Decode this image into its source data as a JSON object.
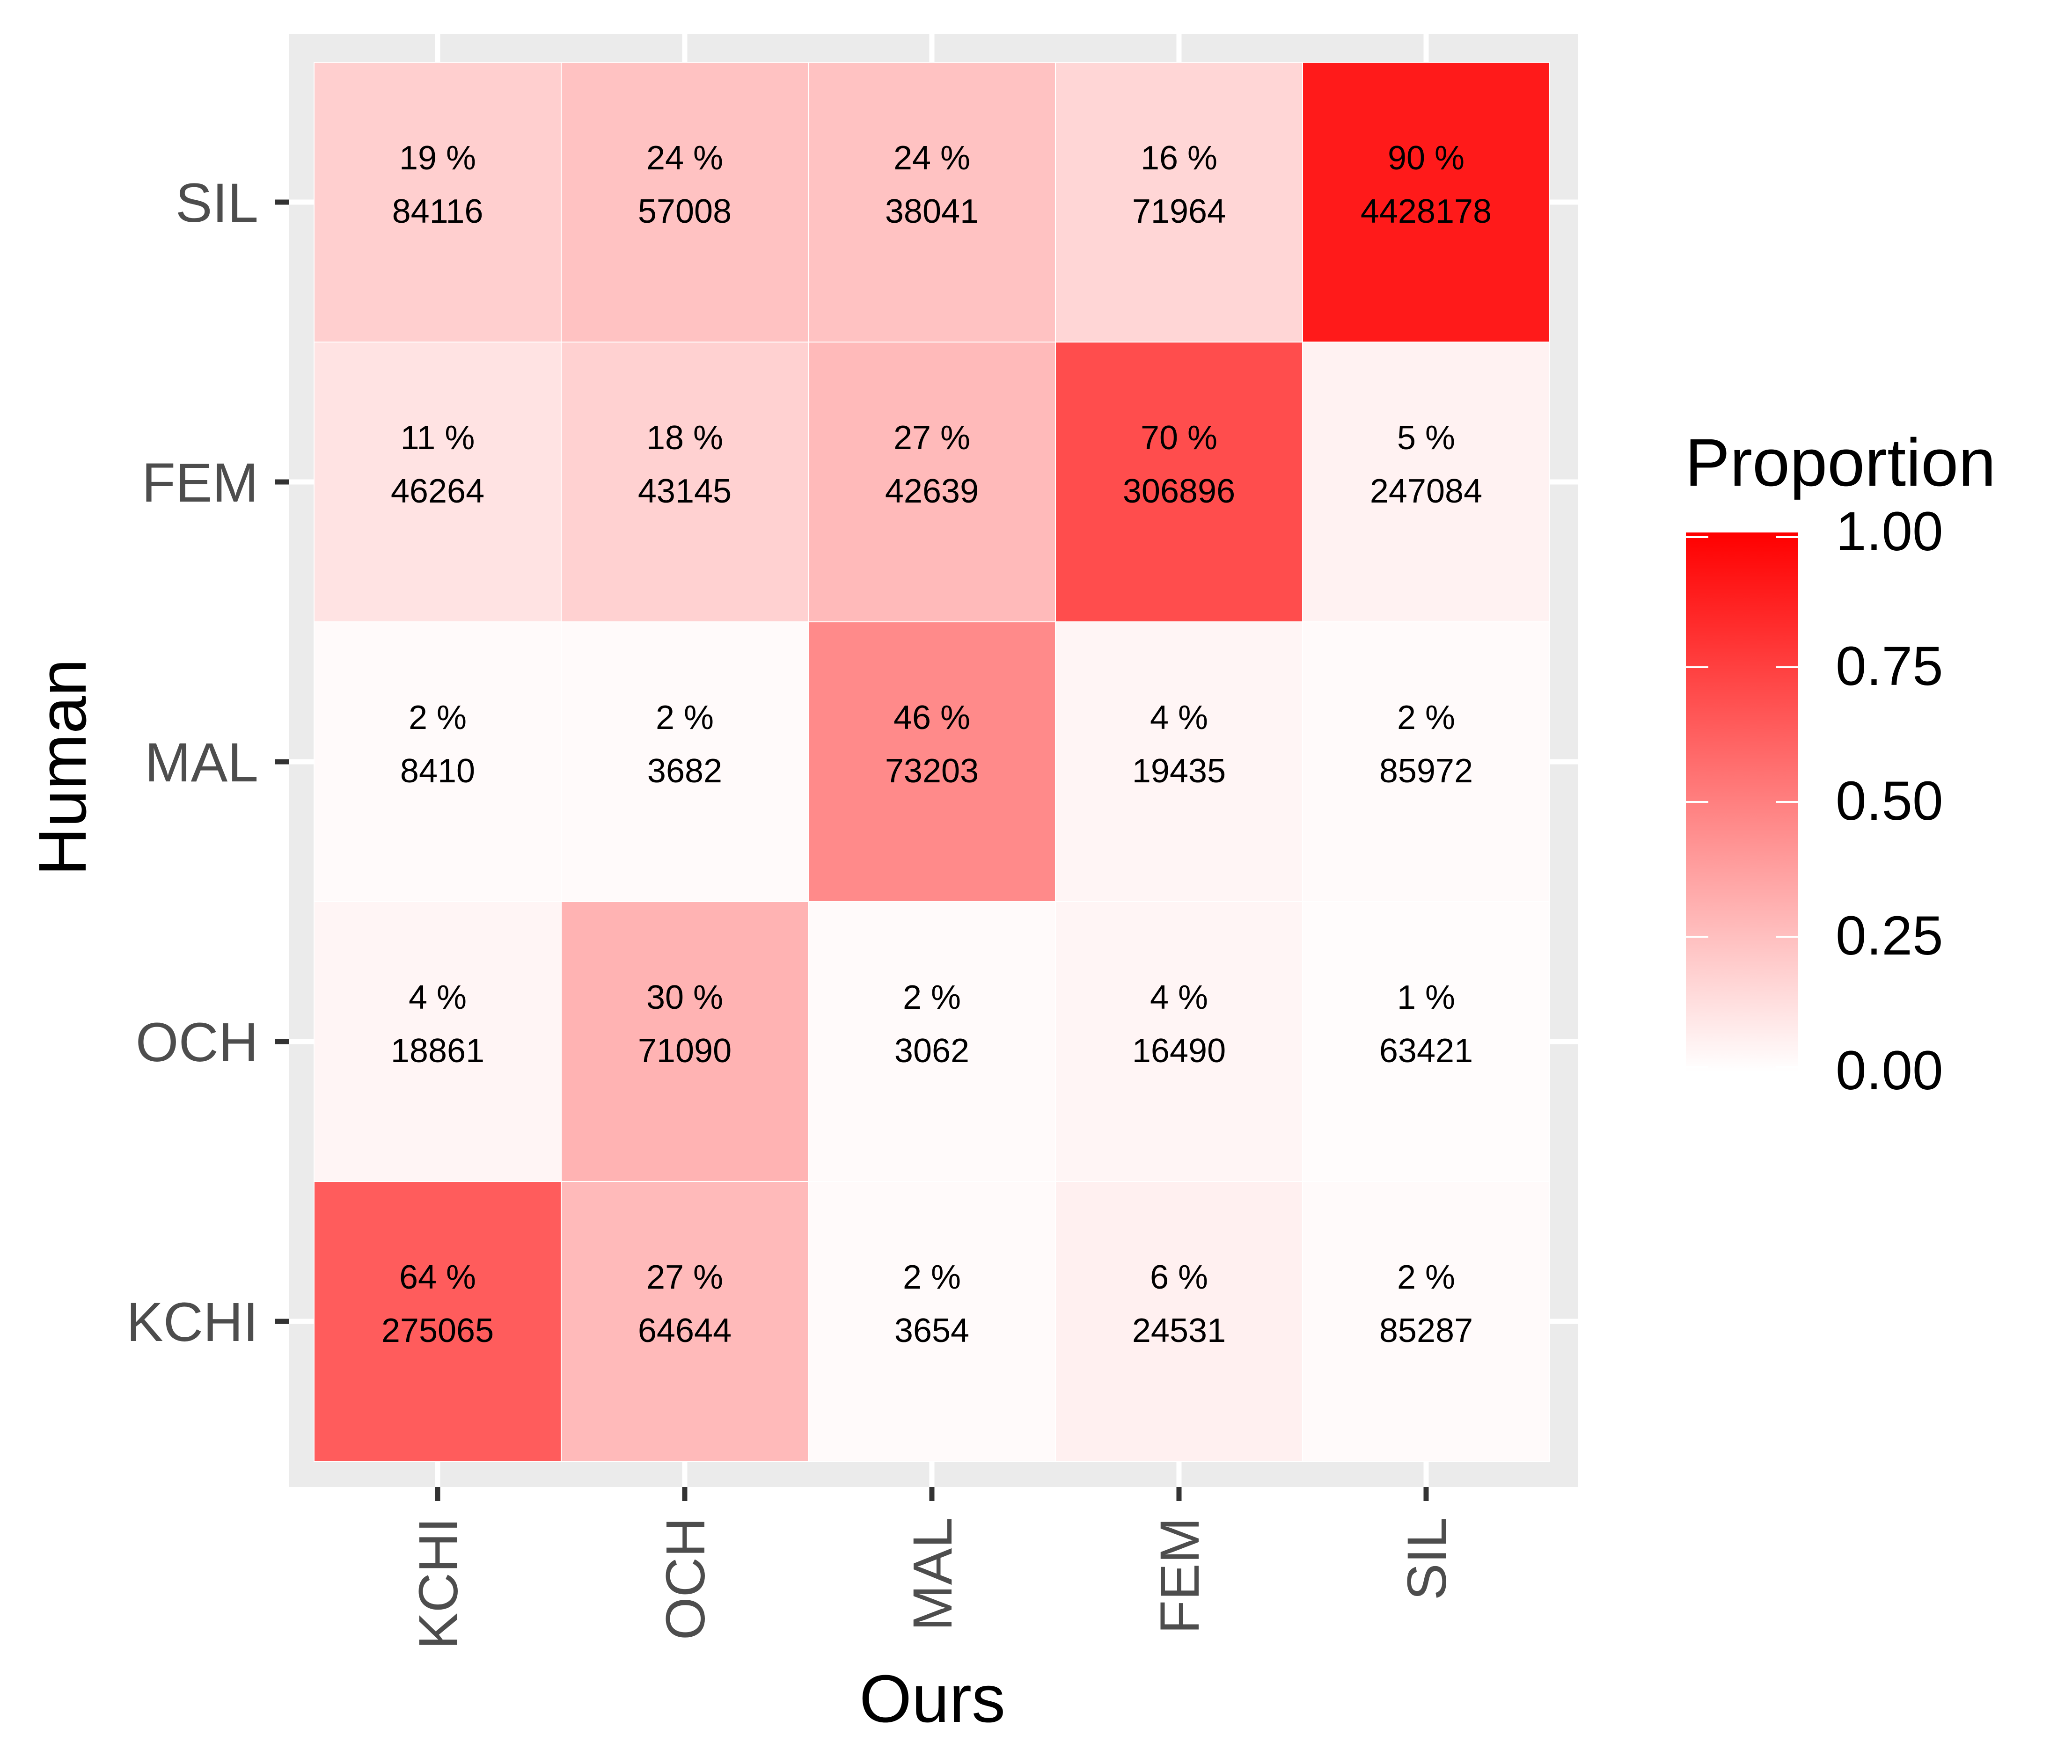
{
  "chart_data": {
    "type": "heatmap",
    "xlabel": "Ours",
    "ylabel": "Human",
    "x_categories": [
      "KCHI",
      "OCH",
      "MAL",
      "FEM",
      "SIL"
    ],
    "y_categories": [
      "KCHI",
      "OCH",
      "MAL",
      "FEM",
      "SIL"
    ],
    "legend": {
      "title": "Proportion",
      "ticks": [
        "0.00",
        "0.25",
        "0.50",
        "0.75",
        "1.00"
      ],
      "range": [
        0,
        1
      ],
      "low_color": "#ffffff",
      "high_color": "#ff0000",
      "placement": "right"
    },
    "cells": [
      {
        "human": "SIL",
        "ours": "KCHI",
        "proportion": 0.19,
        "percent_label": "19 %",
        "count": "84116"
      },
      {
        "human": "SIL",
        "ours": "OCH",
        "proportion": 0.24,
        "percent_label": "24 %",
        "count": "57008"
      },
      {
        "human": "SIL",
        "ours": "MAL",
        "proportion": 0.24,
        "percent_label": "24 %",
        "count": "38041"
      },
      {
        "human": "SIL",
        "ours": "FEM",
        "proportion": 0.16,
        "percent_label": "16 %",
        "count": "71964"
      },
      {
        "human": "SIL",
        "ours": "SIL",
        "proportion": 0.9,
        "percent_label": "90 %",
        "count": "4428178"
      },
      {
        "human": "FEM",
        "ours": "KCHI",
        "proportion": 0.11,
        "percent_label": "11 %",
        "count": "46264"
      },
      {
        "human": "FEM",
        "ours": "OCH",
        "proportion": 0.18,
        "percent_label": "18 %",
        "count": "43145"
      },
      {
        "human": "FEM",
        "ours": "MAL",
        "proportion": 0.27,
        "percent_label": "27 %",
        "count": "42639"
      },
      {
        "human": "FEM",
        "ours": "FEM",
        "proportion": 0.7,
        "percent_label": "70 %",
        "count": "306896"
      },
      {
        "human": "FEM",
        "ours": "SIL",
        "proportion": 0.05,
        "percent_label": "5 %",
        "count": "247084"
      },
      {
        "human": "MAL",
        "ours": "KCHI",
        "proportion": 0.02,
        "percent_label": "2 %",
        "count": "8410"
      },
      {
        "human": "MAL",
        "ours": "OCH",
        "proportion": 0.02,
        "percent_label": "2 %",
        "count": "3682"
      },
      {
        "human": "MAL",
        "ours": "MAL",
        "proportion": 0.46,
        "percent_label": "46 %",
        "count": "73203"
      },
      {
        "human": "MAL",
        "ours": "FEM",
        "proportion": 0.04,
        "percent_label": "4 %",
        "count": "19435"
      },
      {
        "human": "MAL",
        "ours": "SIL",
        "proportion": 0.02,
        "percent_label": "2 %",
        "count": "85972"
      },
      {
        "human": "OCH",
        "ours": "KCHI",
        "proportion": 0.04,
        "percent_label": "4 %",
        "count": "18861"
      },
      {
        "human": "OCH",
        "ours": "OCH",
        "proportion": 0.3,
        "percent_label": "30 %",
        "count": "71090"
      },
      {
        "human": "OCH",
        "ours": "MAL",
        "proportion": 0.02,
        "percent_label": "2 %",
        "count": "3062"
      },
      {
        "human": "OCH",
        "ours": "FEM",
        "proportion": 0.04,
        "percent_label": "4 %",
        "count": "16490"
      },
      {
        "human": "OCH",
        "ours": "SIL",
        "proportion": 0.01,
        "percent_label": "1 %",
        "count": "63421"
      },
      {
        "human": "KCHI",
        "ours": "KCHI",
        "proportion": 0.64,
        "percent_label": "64 %",
        "count": "275065"
      },
      {
        "human": "KCHI",
        "ours": "OCH",
        "proportion": 0.27,
        "percent_label": "27 %",
        "count": "64644"
      },
      {
        "human": "KCHI",
        "ours": "MAL",
        "proportion": 0.02,
        "percent_label": "2 %",
        "count": "3654"
      },
      {
        "human": "KCHI",
        "ours": "FEM",
        "proportion": 0.06,
        "percent_label": "6 %",
        "count": "24531"
      },
      {
        "human": "KCHI",
        "ours": "SIL",
        "proportion": 0.02,
        "percent_label": "2 %",
        "count": "85287"
      }
    ]
  }
}
